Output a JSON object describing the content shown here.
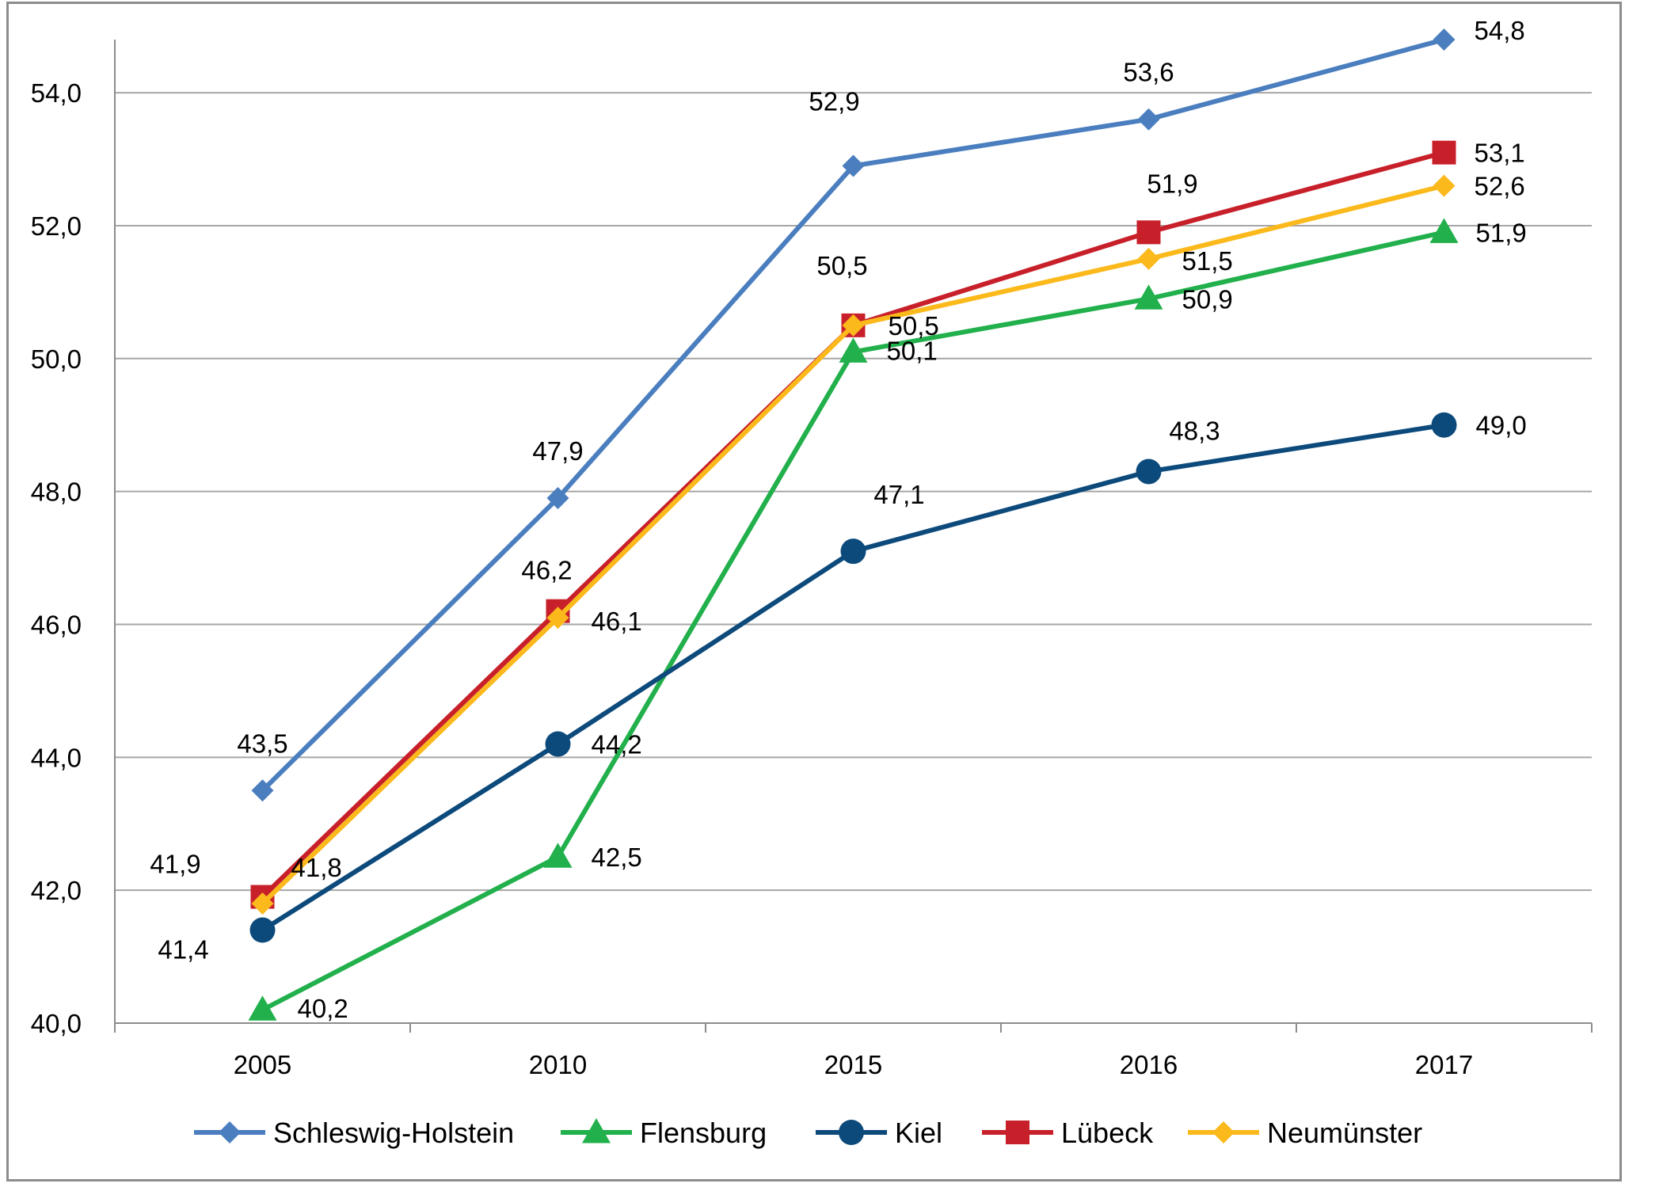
{
  "chart_data": {
    "type": "line",
    "categories": [
      "2005",
      "2010",
      "2015",
      "2016",
      "2017"
    ],
    "ylim": [
      40,
      54.8
    ],
    "yticks": [
      "40,0",
      "42,0",
      "44,0",
      "46,0",
      "48,0",
      "50,0",
      "52,0",
      "54,0"
    ],
    "grid": true,
    "legend_position": "bottom",
    "series": [
      {
        "name": "Schleswig-Holstein",
        "color": "#4a7ebf",
        "marker": "diamond",
        "values": [
          43.5,
          47.9,
          52.9,
          53.6,
          54.8
        ],
        "labels": [
          "43,5",
          "47,9",
          "52,9",
          "53,6",
          "54,8"
        ]
      },
      {
        "name": "Flensburg",
        "color": "#21b04b",
        "marker": "triangle",
        "values": [
          40.2,
          42.5,
          50.1,
          50.9,
          51.9
        ],
        "labels": [
          "40,2",
          "42,5",
          "50,1",
          "50,9",
          "51,9"
        ]
      },
      {
        "name": "Kiel",
        "color": "#0d4a7c",
        "marker": "circle",
        "values": [
          41.4,
          44.2,
          47.1,
          48.3,
          49.0
        ],
        "labels": [
          "41,4",
          "44,2",
          "47,1",
          "48,3",
          "49,0"
        ]
      },
      {
        "name": "Lübeck",
        "color": "#c8202a",
        "marker": "square",
        "values": [
          41.9,
          46.2,
          50.5,
          51.9,
          53.1
        ],
        "labels": [
          "41,9",
          "46,2",
          "50,5",
          "51,9",
          "53,1"
        ]
      },
      {
        "name": "Neumünster",
        "color": "#fbb91c",
        "marker": "diamond",
        "values": [
          41.8,
          46.1,
          50.5,
          51.5,
          52.6
        ],
        "labels": [
          "41,8",
          "46,1",
          "50,5",
          "51,5",
          "52,6"
        ]
      }
    ]
  }
}
